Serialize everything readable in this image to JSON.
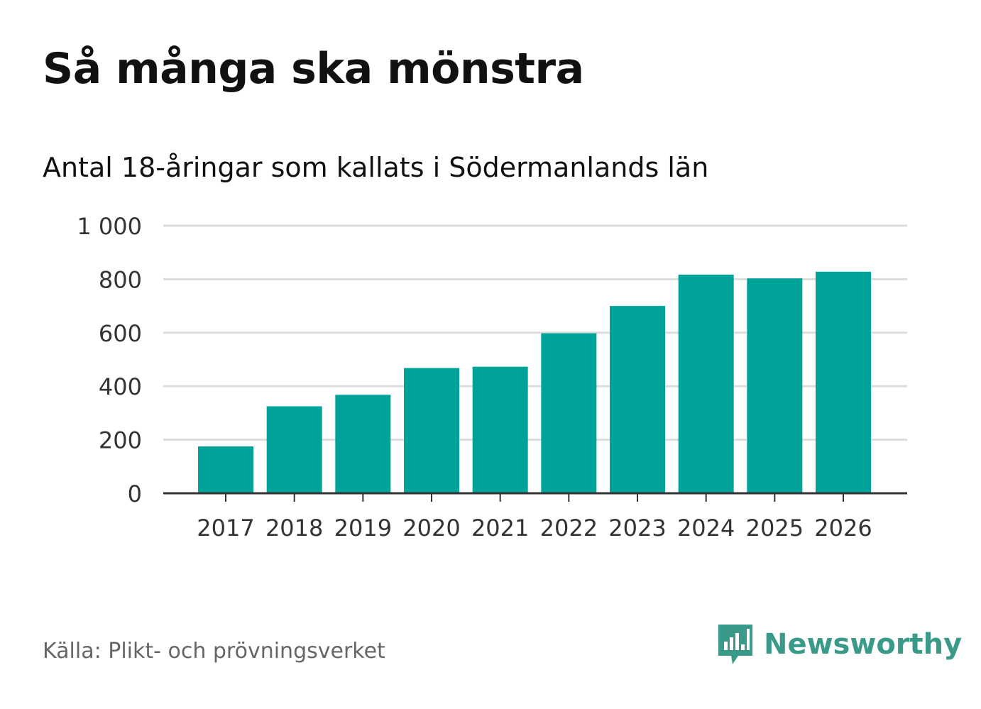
{
  "header": {
    "title": "Så många ska mönstra",
    "subtitle": "Antal 18-åringar som kallats i Södermanlands län"
  },
  "footer": {
    "source": "Källa: Plikt- och prövningsverket",
    "brand": "Newsworthy",
    "brand_icon": "bar-chart-speech-icon"
  },
  "colors": {
    "bar": "#00a39a",
    "grid": "#dddddd",
    "axis": "#333333",
    "brand": "#3a9a8a"
  },
  "chart_data": {
    "type": "bar",
    "title": "Så många ska mönstra",
    "subtitle": "Antal 18-åringar som kallats i Södermanlands län",
    "xlabel": "",
    "ylabel": "",
    "categories": [
      "2017",
      "2018",
      "2019",
      "2020",
      "2021",
      "2022",
      "2023",
      "2024",
      "2025",
      "2026"
    ],
    "values": [
      175,
      325,
      368,
      468,
      473,
      598,
      700,
      817,
      803,
      828
    ],
    "ylim": [
      0,
      1000
    ],
    "yticks": [
      0,
      200,
      400,
      600,
      800,
      1000
    ],
    "ytick_labels": [
      "0",
      "200",
      "400",
      "600",
      "800",
      "1 000"
    ],
    "grid": true,
    "legend": "none"
  }
}
